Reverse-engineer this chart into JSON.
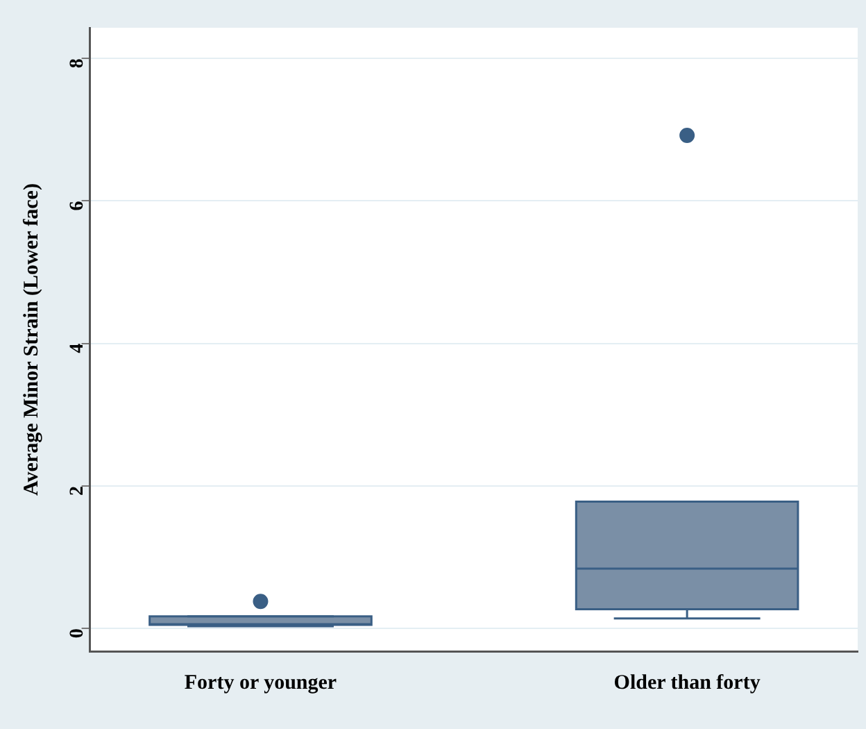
{
  "chart_data": {
    "type": "box",
    "ylabel": "Average Minor Strain (Lower face)",
    "categories": [
      "Forty or younger",
      "Older than forty"
    ],
    "boxes": [
      {
        "low": 0.03,
        "q1": 0.05,
        "median": 0.06,
        "q3": 0.17,
        "high": 0.17,
        "outliers": [
          0.38
        ]
      },
      {
        "low": 0.14,
        "q1": 0.27,
        "median": 0.84,
        "q3": 1.78,
        "high": 1.78,
        "outliers": [
          6.92
        ]
      }
    ],
    "color": "#7a8fa6",
    "ylim": [
      -0.32,
      8.43
    ],
    "yticks": [
      0,
      2,
      4,
      6,
      8
    ],
    "grid": "y",
    "marker": "circle",
    "legend": false
  }
}
